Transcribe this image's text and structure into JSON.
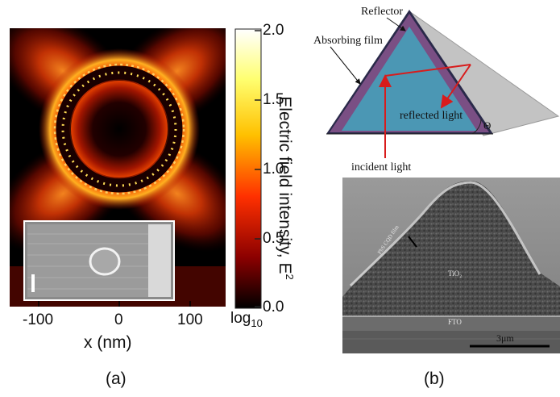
{
  "panel_a": {
    "caption": "(a)",
    "x_axis": {
      "label": "x (nm)",
      "ticks": [
        "-100",
        "0",
        "100"
      ]
    },
    "colorbar": {
      "label": "Electric field intensity, E",
      "label_sup": "2",
      "ticks": [
        "2.0",
        "1.5",
        "1.0",
        "0.5",
        "0.0"
      ],
      "scale_label": "log",
      "scale_sub": "10"
    }
  },
  "panel_b": {
    "caption": "(b)",
    "schematic": {
      "reflector": "Reflector",
      "absorbing_film": "Absorbing film",
      "reflected_light": "reflected light",
      "incident_light": "incident light",
      "angle": "Θ"
    },
    "sem": {
      "film_label": "PbS CQD film",
      "tio2": "TiO₂",
      "fto": "FTO",
      "scale_bar": "3μm"
    }
  },
  "chart_data": {
    "type": "heatmap",
    "xlabel": "x (nm)",
    "x_ticks": [
      -100,
      0,
      100
    ],
    "colorbar_label": "Electric field intensity, E²",
    "colorbar_scale": "log10",
    "colorbar_range": [
      0.0,
      2.0
    ],
    "colorbar_ticks": [
      0.0,
      0.5,
      1.0,
      1.5,
      2.0
    ]
  },
  "colors": {
    "heatmap_bg": "#000000",
    "glow": "#c01800",
    "hot": "#ffd020",
    "film_purple": "#7a4f84",
    "prism_blue": "#4b97b4",
    "arrow_red": "#d81c1c",
    "reflector_grey": "#c3c3c3"
  }
}
